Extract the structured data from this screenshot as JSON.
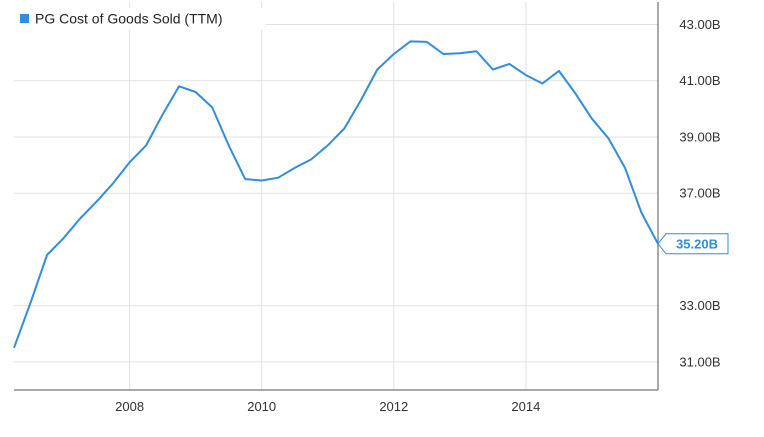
{
  "chart_data": {
    "type": "line",
    "legend": {
      "label": "PG Cost of Goods Sold (TTM)",
      "placement": "top-left"
    },
    "series": [
      {
        "name": "PG Cost of Goods Sold (TTM)",
        "color": "#2f8ee0",
        "x": [
          2006.25,
          2006.5,
          2006.75,
          2007.0,
          2007.25,
          2007.5,
          2007.75,
          2008.0,
          2008.25,
          2008.5,
          2008.75,
          2009.0,
          2009.25,
          2009.5,
          2009.75,
          2010.0,
          2010.25,
          2010.5,
          2010.75,
          2011.0,
          2011.25,
          2011.5,
          2011.75,
          2012.0,
          2012.25,
          2012.5,
          2012.75,
          2013.0,
          2013.25,
          2013.5,
          2013.75,
          2014.0,
          2014.25,
          2014.5,
          2014.75,
          2015.0,
          2015.25,
          2015.5,
          2015.75,
          2016.0
        ],
        "y": [
          31.5,
          33.1,
          34.8,
          35.4,
          36.1,
          36.7,
          37.35,
          38.1,
          38.7,
          39.8,
          40.8,
          40.6,
          40.05,
          38.7,
          37.5,
          37.45,
          37.55,
          37.9,
          38.2,
          38.7,
          39.3,
          40.3,
          41.4,
          41.95,
          42.4,
          42.38,
          41.95,
          41.98,
          42.05,
          41.4,
          41.6,
          41.2,
          40.9,
          41.35,
          40.55,
          39.65,
          38.95,
          37.9,
          36.3,
          35.2
        ]
      }
    ],
    "y_tick_labels": [
      "43.00B",
      "41.00B",
      "39.00B",
      "37.00B",
      "33.00B",
      "31.00B"
    ],
    "y_tick_values": [
      43,
      41,
      39,
      37,
      33,
      31
    ],
    "x_tick_labels": [
      "2008",
      "2010",
      "2012",
      "2014"
    ],
    "x_tick_values": [
      2008,
      2010,
      2012,
      2014
    ],
    "xlim": [
      2006.25,
      2016.0
    ],
    "ylim": [
      30.0,
      43.8
    ],
    "last_value_label": "35.20B",
    "grid": true
  }
}
